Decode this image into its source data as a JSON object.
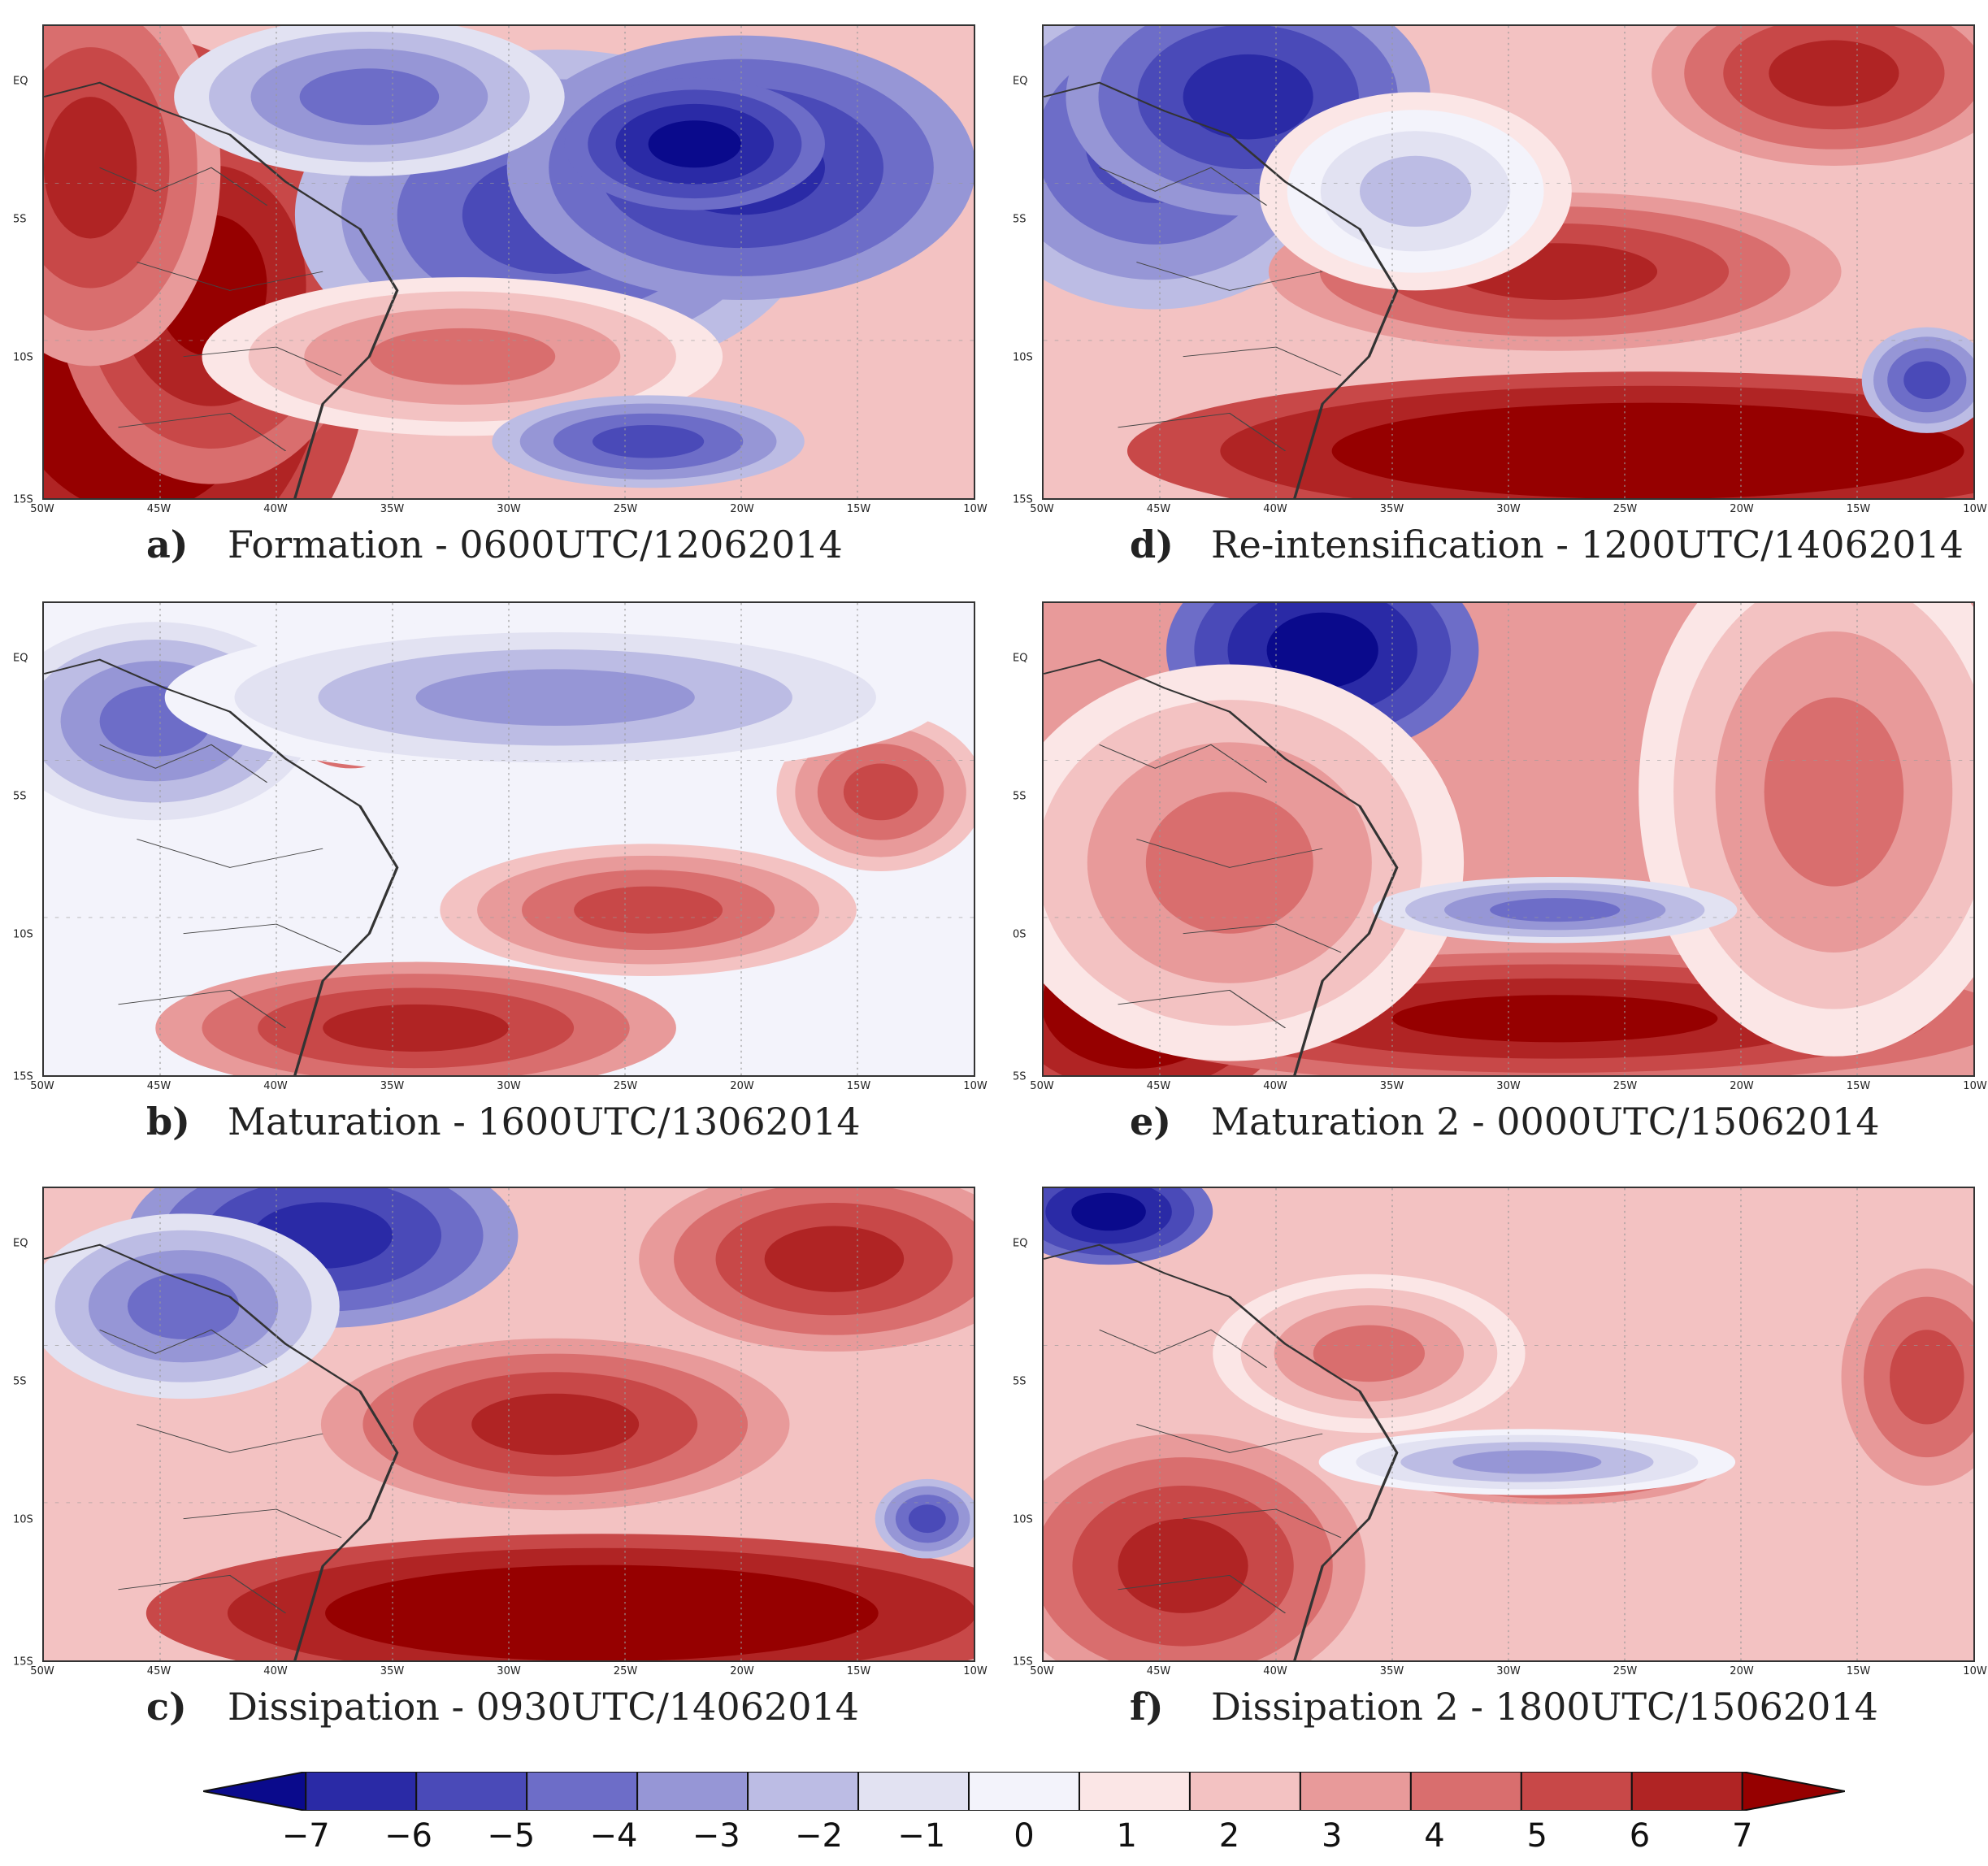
{
  "panels": [
    {
      "id": "a",
      "letter": "a)",
      "caption": "Formation - 0600UTC/12062014",
      "lat_labels": [
        "EQ",
        "5S",
        "10S",
        "15S"
      ],
      "lon_labels": [
        "50W",
        "45W",
        "40W",
        "35W",
        "30W",
        "25W",
        "20W",
        "15W",
        "10W"
      ]
    },
    {
      "id": "d",
      "letter": "d)",
      "caption": "Re-intensification - 1200UTC/14062014",
      "lat_labels": [
        "EQ",
        "5S",
        "10S",
        "15S"
      ],
      "lon_labels": [
        "50W",
        "45W",
        "40W",
        "35W",
        "30W",
        "25W",
        "20W",
        "15W",
        "10W"
      ]
    },
    {
      "id": "b",
      "letter": "b)",
      "caption": "Maturation - 1600UTC/13062014",
      "lat_labels": [
        "EQ",
        "5S",
        "10S",
        "15S"
      ],
      "lon_labels": [
        "50W",
        "45W",
        "40W",
        "35W",
        "30W",
        "25W",
        "20W",
        "15W",
        "10W"
      ]
    },
    {
      "id": "e",
      "letter": "e)",
      "caption": "Maturation 2 - 0000UTC/15062014",
      "lat_labels": [
        "EQ",
        "5S",
        "0S",
        "5S"
      ],
      "lon_labels": [
        "50W",
        "45W",
        "40W",
        "35W",
        "30W",
        "25W",
        "20W",
        "15W",
        "10W"
      ]
    },
    {
      "id": "c",
      "letter": "c)",
      "caption": "Dissipation - 0930UTC/14062014",
      "lat_labels": [
        "EQ",
        "5S",
        "10S",
        "15S"
      ],
      "lon_labels": [
        "50W",
        "45W",
        "40W",
        "35W",
        "30W",
        "25W",
        "20W",
        "15W",
        "10W"
      ]
    },
    {
      "id": "f",
      "letter": "f)",
      "caption": "Dissipation 2 - 1800UTC/15062014",
      "lat_labels": [
        "EQ",
        "5S",
        "10S",
        "15S"
      ],
      "lon_labels": [
        "50W",
        "45W",
        "40W",
        "35W",
        "30W",
        "25W",
        "20W",
        "15W",
        "10W"
      ]
    }
  ],
  "colorbar": {
    "labels": [
      "−7",
      "−6",
      "−5",
      "−4",
      "−3",
      "−2",
      "−1",
      "0",
      "1",
      "2",
      "3",
      "4",
      "5",
      "6",
      "7"
    ],
    "colors": [
      "#0a0a8c",
      "#2a2aa6",
      "#4a4ab8",
      "#6d6dc8",
      "#9696d6",
      "#bcbce4",
      "#e2e2f2",
      "#f3f3fb",
      "#fbe6e6",
      "#f3c2c2",
      "#e89a9a",
      "#d96e6e",
      "#c84848",
      "#b02424",
      "#960000"
    ]
  }
}
